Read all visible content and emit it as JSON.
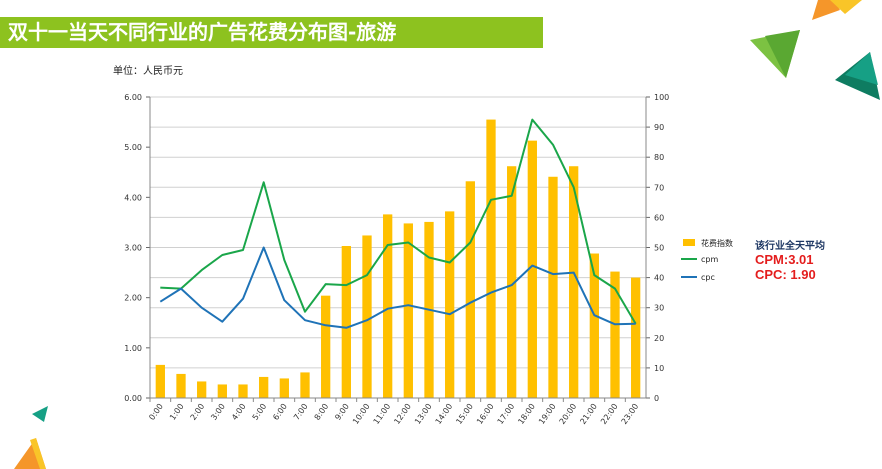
{
  "title": "双十一当天不同行业的广告花费分布图-旅游",
  "unit_label": "单位：人民币元",
  "industry_average": {
    "title": "该行业全天平均",
    "cpm": "CPM:3.01",
    "cpc": "CPC: 1.90"
  },
  "colors": {
    "title_bar": "#8dc21f",
    "bar": "#ffc000",
    "cpm": "#1aa64a",
    "cpc": "#1f73b7",
    "average_values": "#e41d1d"
  },
  "chart_data": {
    "type": "bar+line",
    "categories": [
      "0:00",
      "1:00",
      "2:00",
      "3:00",
      "4:00",
      "5:00",
      "6:00",
      "7:00",
      "8:00",
      "9:00",
      "10:00",
      "11:00",
      "12:00",
      "13:00",
      "14:00",
      "15:00",
      "16:00",
      "17:00",
      "18:00",
      "19:00",
      "20:00",
      "21:00",
      "22:00",
      "23:00"
    ],
    "y_left": {
      "range": [
        0,
        6
      ],
      "ticks": [
        "0.00",
        "1.00",
        "2.00",
        "3.00",
        "4.00",
        "5.00",
        "6.00"
      ]
    },
    "y_right": {
      "range": [
        0,
        100
      ],
      "ticks": [
        "0",
        "10",
        "20",
        "30",
        "40",
        "50",
        "60",
        "70",
        "80",
        "90",
        "100"
      ]
    },
    "grid": true,
    "legend_position": "right",
    "series": [
      {
        "name": "花费指数",
        "type": "bar",
        "axis": "right",
        "values": [
          11,
          8,
          5.5,
          4.5,
          4.5,
          7,
          6.5,
          8.5,
          34,
          50.5,
          54,
          61,
          58,
          58.5,
          62,
          72,
          92.5,
          77,
          85.5,
          73.5,
          77,
          48,
          42,
          40
        ]
      },
      {
        "name": "cpm",
        "type": "line",
        "axis": "left",
        "values": [
          2.2,
          2.18,
          2.55,
          2.85,
          2.95,
          4.3,
          2.75,
          1.72,
          2.27,
          2.25,
          2.45,
          3.05,
          3.1,
          2.8,
          2.7,
          3.1,
          3.95,
          4.03,
          5.55,
          5.05,
          4.2,
          2.45,
          2.18,
          1.48
        ]
      },
      {
        "name": "cpc",
        "type": "line",
        "axis": "left",
        "values": [
          1.92,
          2.18,
          1.8,
          1.52,
          1.98,
          3.0,
          1.95,
          1.55,
          1.45,
          1.4,
          1.55,
          1.78,
          1.85,
          1.76,
          1.67,
          1.9,
          2.1,
          2.25,
          2.64,
          2.47,
          2.5,
          1.65,
          1.47,
          1.48
        ]
      }
    ]
  }
}
